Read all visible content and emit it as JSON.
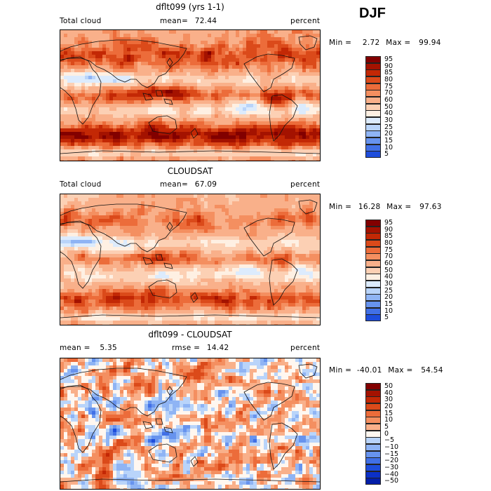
{
  "header": {
    "season": "DJF"
  },
  "colors": {
    "pos": [
      "#820000",
      "#a41200",
      "#c32805",
      "#db4a1a",
      "#ec6c3a",
      "#f48f60",
      "#f9b08a",
      "#fcd0b4",
      "#fef0e3"
    ],
    "neg": [
      "#dcebfd",
      "#b9d4fa",
      "#8fb4f4",
      "#6793ee",
      "#4170e6",
      "#1e4ddb",
      "#0b30c8",
      "#031ea8",
      "#000f80"
    ],
    "land_line": "#111111"
  },
  "panels": [
    {
      "title": "dflt099 (yrs 1-1)",
      "left_label": "Total cloud",
      "center_label": "mean=",
      "center_value": "72.44",
      "right_label": "percent",
      "min_label": "Min =",
      "min_value": "2.72",
      "max_label": "Max =",
      "max_value": "99.94"
    },
    {
      "title": "CLOUDSAT",
      "left_label": "Total cloud",
      "center_label": "mean=",
      "center_value": "67.09",
      "right_label": "percent",
      "min_label": "Min =",
      "min_value": "16.28",
      "max_label": "Max =",
      "max_value": "97.63"
    },
    {
      "title": "dflt099 - CLOUDSAT",
      "left_label": "mean =",
      "left_value": "5.35",
      "center_label": "rmse =",
      "center_value": "14.42",
      "right_label": "percent",
      "min_label": "Min =",
      "min_value": "-40.01",
      "max_label": "Max =",
      "max_value": "54.54"
    }
  ],
  "chart_data": [
    {
      "type": "heatmap",
      "title": "dflt099 (yrs 1-1)",
      "variable": "Total cloud",
      "units": "percent",
      "mean": 72.44,
      "min": 2.72,
      "max": 99.94,
      "colorbar_levels": [
        95,
        90,
        85,
        80,
        75,
        70,
        60,
        50,
        40,
        30,
        25,
        20,
        15,
        10,
        5
      ],
      "colorbar_labels": [
        "95",
        "90",
        "85",
        "80",
        "75",
        "70",
        "60",
        "50",
        "40",
        "30",
        "25",
        "20",
        "15",
        "10",
        "5"
      ]
    },
    {
      "type": "heatmap",
      "title": "CLOUDSAT",
      "variable": "Total cloud",
      "units": "percent",
      "mean": 67.09,
      "min": 16.28,
      "max": 97.63,
      "colorbar_levels": [
        95,
        90,
        85,
        80,
        75,
        70,
        60,
        50,
        40,
        30,
        25,
        20,
        15,
        10,
        5
      ],
      "colorbar_labels": [
        "95",
        "90",
        "85",
        "80",
        "75",
        "70",
        "60",
        "50",
        "40",
        "30",
        "25",
        "20",
        "15",
        "10",
        "5"
      ]
    },
    {
      "type": "heatmap",
      "title": "dflt099 - CLOUDSAT",
      "units": "percent",
      "mean": 5.35,
      "rmse": 14.42,
      "min": -40.01,
      "max": 54.54,
      "colorbar_levels": [
        50,
        40,
        30,
        20,
        15,
        10,
        5,
        0,
        -5,
        -10,
        -15,
        -20,
        -30,
        -40,
        -50
      ],
      "colorbar_labels": [
        "50",
        "40",
        "30",
        "20",
        "15",
        "10",
        "5",
        "0",
        "−5",
        "−10",
        "−15",
        "−20",
        "−30",
        "−40",
        "−50"
      ]
    }
  ]
}
